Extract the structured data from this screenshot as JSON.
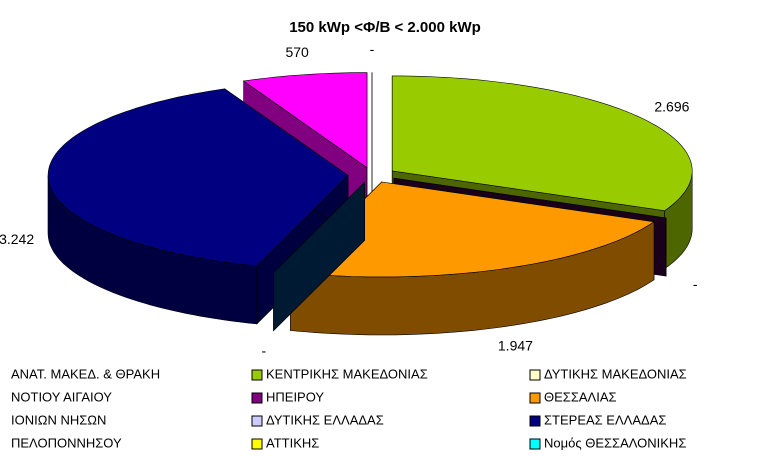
{
  "chart_data": {
    "type": "pie3d",
    "title": "150 kWp <Φ/Β < 2.000 kWp",
    "values": [
      2696,
      0,
      1947,
      0,
      3242,
      570,
      0
    ],
    "value_labels": [
      "2.696",
      "-",
      "1.947",
      "-",
      "3.242",
      "570",
      "-"
    ],
    "colors": [
      "#99CC00",
      "#330033",
      "#FF9900",
      "#003366",
      "#000080",
      "#FF00FF",
      "#FFFFFF"
    ],
    "legend": [
      {
        "name": "ΑΝΑΤ. ΜΑΚΕΔ. & ΘΡΑΚΗ"
      },
      {
        "name": "ΚΕΝΤΡΙΚΗΣ ΜΑΚΕΔΟΝΙΑΣ",
        "color": "#99CC00"
      },
      {
        "name": "ΔΥΤΙΚΗΣ ΜΑΚΕΔΟΝΙΑΣ",
        "color": "#FFFFCC"
      },
      {
        "name": "ΝΟΤΙΟΥ ΑΙΓΑΙΟΥ"
      },
      {
        "name": "ΗΠΕΙΡΟΥ",
        "color": "#800080"
      },
      {
        "name": "ΘΕΣΣΑΛΙΑΣ",
        "color": "#FF9900"
      },
      {
        "name": "ΙΟΝΙΩΝ ΝΗΣΩΝ"
      },
      {
        "name": "ΔΥΤΙΚΗΣ ΕΛΛΑΔΑΣ",
        "color": "#CCCCFF"
      },
      {
        "name": "ΣΤΕΡΕΑΣ ΕΛΛΑΔΑΣ",
        "color": "#000080"
      },
      {
        "name": "ΠΕΛΟΠΟΝΝΗΣΟΥ"
      },
      {
        "name": "ΑΤΤΙΚΗΣ",
        "color": "#FFFF00"
      },
      {
        "name": "Νομός ΘΕΣΣΑΛΟΝΙΚΗΣ",
        "color": "#00FFFF"
      }
    ]
  }
}
